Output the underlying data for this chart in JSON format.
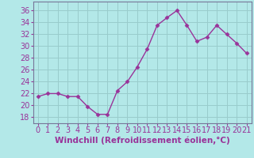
{
  "x": [
    0,
    1,
    2,
    3,
    4,
    5,
    6,
    7,
    8,
    9,
    10,
    11,
    12,
    13,
    14,
    15,
    16,
    17,
    18,
    19,
    20,
    21
  ],
  "y": [
    21.5,
    22.0,
    22.0,
    21.5,
    21.5,
    19.8,
    18.5,
    18.5,
    22.5,
    24.0,
    26.5,
    29.5,
    33.5,
    34.8,
    36.0,
    33.5,
    30.8,
    31.5,
    33.5,
    32.0,
    30.5,
    28.8
  ],
  "line_color": "#993399",
  "marker": "D",
  "marker_size": 2.5,
  "bg_color": "#b3e8e8",
  "grid_color": "#99cccc",
  "xlabel": "Windchill (Refroidissement éolien,°C)",
  "xlabel_fontsize": 7.5,
  "ylabel_ticks": [
    18,
    20,
    22,
    24,
    26,
    28,
    30,
    32,
    34,
    36
  ],
  "xtick_labels": [
    "0",
    "1",
    "2",
    "3",
    "4",
    "5",
    "6",
    "7",
    "8",
    "9",
    "10",
    "11",
    "12",
    "13",
    "14",
    "15",
    "16",
    "17",
    "18",
    "19",
    "20",
    "21"
  ],
  "ylim": [
    17.0,
    37.5
  ],
  "xlim": [
    -0.5,
    21.5
  ],
  "tick_color": "#993399",
  "tick_fontsize": 7
}
